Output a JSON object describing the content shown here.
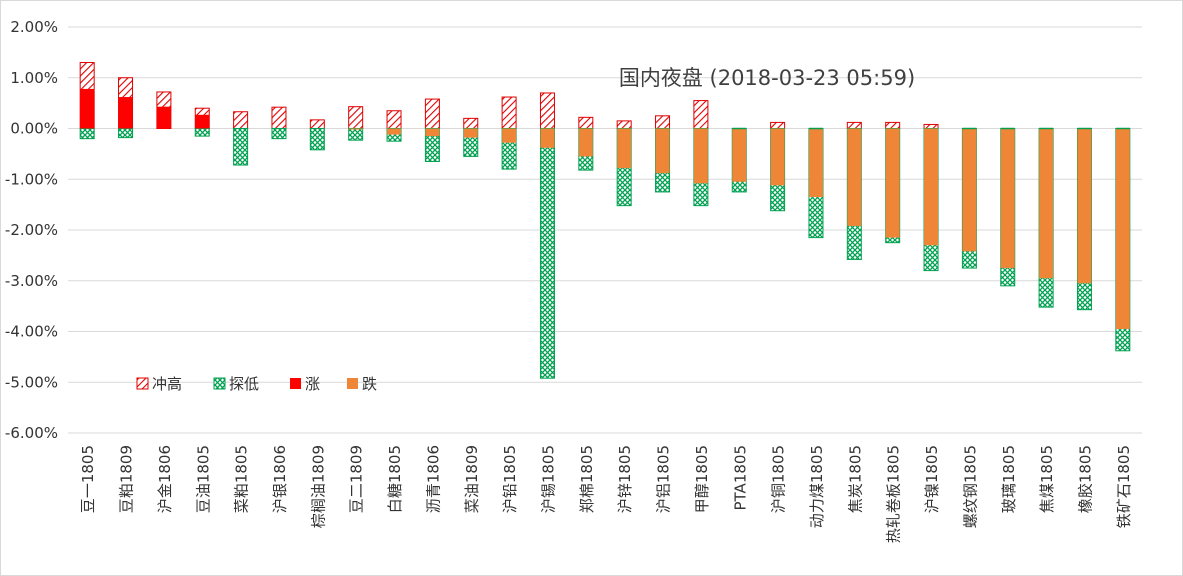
{
  "chart_data": {
    "type": "bar",
    "title": "国内夜盘 (2018-03-23 05:59)",
    "xlabel": "",
    "ylabel": "",
    "ylim": [
      -6,
      2
    ],
    "y_ticks": [
      "2.00%",
      "1.00%",
      "0.00%",
      "-1.00%",
      "-2.00%",
      "-3.00%",
      "-4.00%",
      "-5.00%",
      "-6.00%"
    ],
    "y_tick_values": [
      2,
      1,
      0,
      -1,
      -2,
      -3,
      -4,
      -5,
      -6
    ],
    "grid": true,
    "legend_position": "bottom-left",
    "categories": [
      "豆一1805",
      "豆粕1809",
      "沪金1806",
      "豆油1805",
      "菜粕1805",
      "沪银1806",
      "棕榈油1809",
      "豆二1809",
      "白糖1805",
      "沥青1806",
      "菜油1809",
      "沪铅1805",
      "沪锡1805",
      "郑棉1805",
      "沪锌1805",
      "沪铝1805",
      "甲醇1805",
      "PTA1805",
      "沪铜1805",
      "动力煤1805",
      "焦炭1805",
      "热轧卷板1805",
      "沪镍1805",
      "螺纹钢1805",
      "玻璃1805",
      "焦煤1805",
      "橡胶1805",
      "铁矿石1805"
    ],
    "series": [
      {
        "name": "冲高",
        "color": "#e00000",
        "pattern": "diagonal-hatch",
        "values": [
          1.3,
          1.0,
          0.72,
          0.4,
          0.33,
          0.42,
          0.17,
          0.43,
          0.35,
          0.58,
          0.2,
          0.62,
          0.7,
          0.22,
          0.15,
          0.25,
          0.55,
          0.0,
          0.12,
          0.0,
          0.12,
          0.12,
          0.08,
          0.0,
          0.0,
          0.0,
          0.0,
          0.0
        ]
      },
      {
        "name": "探低",
        "color": "#00a050",
        "pattern": "cross-hatch",
        "values": [
          -0.2,
          -0.18,
          0.0,
          -0.15,
          -0.72,
          -0.2,
          -0.42,
          -0.23,
          -0.25,
          -0.65,
          -0.55,
          -0.8,
          -4.92,
          -0.82,
          -1.52,
          -1.25,
          -1.52,
          -1.25,
          -1.62,
          -2.15,
          -2.58,
          -2.25,
          -2.8,
          -2.75,
          -3.1,
          -3.52,
          -3.57,
          -4.38
        ]
      },
      {
        "name": "涨",
        "color": "#ff0000",
        "pattern": "solid",
        "values": [
          0.78,
          0.62,
          0.43,
          0.27,
          0.0,
          0.0,
          0.0,
          0.0,
          0.0,
          0.0,
          0.0,
          0.0,
          0.0,
          0.0,
          0.0,
          0.0,
          0.0,
          0.0,
          0.0,
          0.0,
          0.0,
          0.0,
          0.0,
          0.0,
          0.0,
          0.0,
          0.0,
          0.0
        ]
      },
      {
        "name": "跌",
        "color": "#ef8536",
        "pattern": "solid",
        "values": [
          0.0,
          0.0,
          0.0,
          0.0,
          0.0,
          0.0,
          0.0,
          -0.02,
          -0.12,
          -0.15,
          -0.18,
          -0.28,
          -0.38,
          -0.55,
          -0.78,
          -0.88,
          -1.08,
          -1.05,
          -1.12,
          -1.35,
          -1.92,
          -2.15,
          -2.3,
          -2.42,
          -2.75,
          -2.95,
          -3.05,
          -3.95
        ]
      }
    ]
  }
}
